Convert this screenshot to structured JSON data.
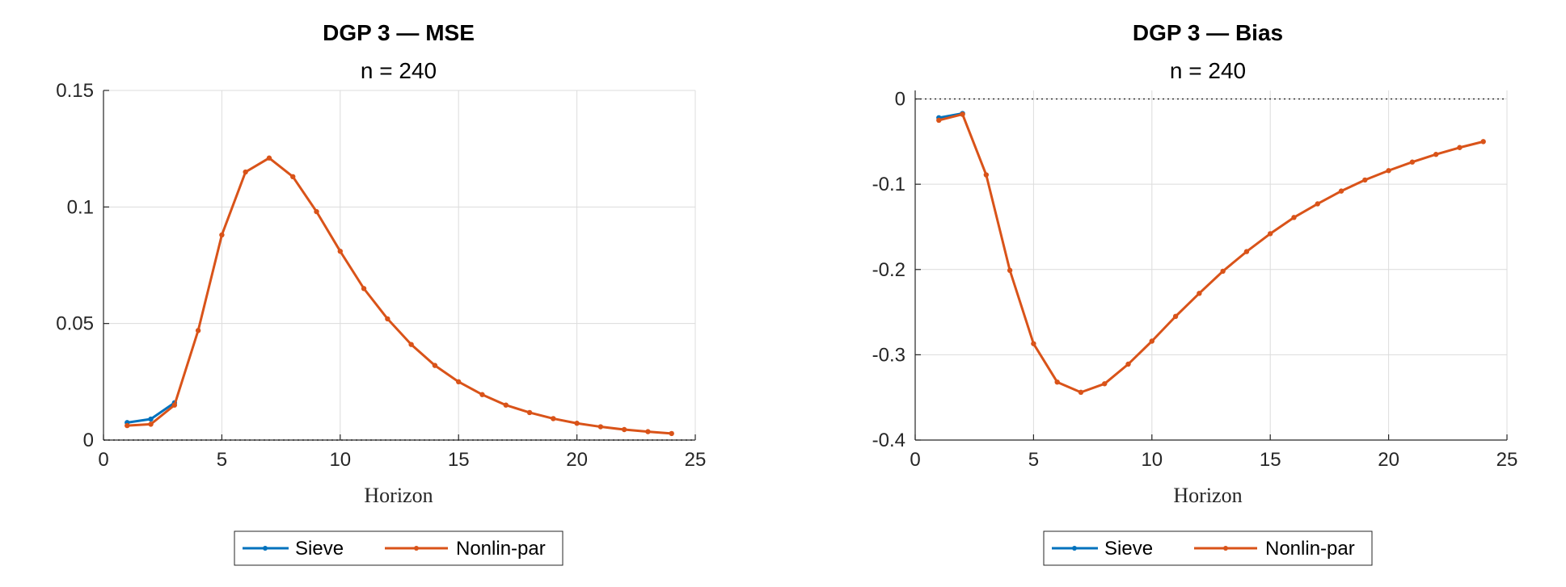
{
  "chart_data": [
    {
      "type": "line",
      "title": "DGP 3  —  MSE",
      "subtitle": "n = 240",
      "xlabel": "Horizon",
      "ylabel": "",
      "xlim": [
        0,
        25
      ],
      "ylim": [
        0,
        0.15
      ],
      "xticks": [
        0,
        5,
        10,
        15,
        20,
        25
      ],
      "xtick_labels": [
        "0",
        "5",
        "10",
        "15",
        "20",
        "25"
      ],
      "yticks": [
        0,
        0.05,
        0.1,
        0.15
      ],
      "ytick_labels": [
        "0",
        "0.05",
        "0.1",
        "0.15"
      ],
      "grid": true,
      "zero_line": true,
      "legend": "bottom",
      "series": [
        {
          "name": "Sieve",
          "color": "#0072BD",
          "x": [
            1,
            2,
            3
          ],
          "values": [
            0.0075,
            0.009,
            0.016
          ]
        },
        {
          "name": "Nonlin-par",
          "color": "#D95319",
          "x": [
            1,
            2,
            3,
            4,
            5,
            6,
            7,
            8,
            9,
            10,
            11,
            12,
            13,
            14,
            15,
            16,
            17,
            18,
            19,
            20,
            21,
            22,
            23,
            24
          ],
          "values": [
            0.0062,
            0.0068,
            0.015,
            0.047,
            0.088,
            0.115,
            0.121,
            0.113,
            0.098,
            0.081,
            0.065,
            0.052,
            0.041,
            0.032,
            0.025,
            0.0195,
            0.015,
            0.0118,
            0.0092,
            0.0072,
            0.0057,
            0.0045,
            0.0036,
            0.0028
          ]
        }
      ]
    },
    {
      "type": "line",
      "title": "DGP 3  —  Bias",
      "subtitle": "n = 240",
      "xlabel": "Horizon",
      "ylabel": "",
      "xlim": [
        0,
        25
      ],
      "ylim": [
        -0.4,
        0.01
      ],
      "xticks": [
        0,
        5,
        10,
        15,
        20,
        25
      ],
      "xtick_labels": [
        "0",
        "5",
        "10",
        "15",
        "20",
        "25"
      ],
      "yticks": [
        -0.4,
        -0.3,
        -0.2,
        -0.1,
        0
      ],
      "ytick_labels": [
        "-0.4",
        "-0.3",
        "-0.2",
        "-0.1",
        "0"
      ],
      "grid": true,
      "zero_line": true,
      "legend": "bottom",
      "series": [
        {
          "name": "Sieve",
          "color": "#0072BD",
          "x": [
            1,
            2
          ],
          "values": [
            -0.022,
            -0.017
          ]
        },
        {
          "name": "Nonlin-par",
          "color": "#D95319",
          "x": [
            1,
            2,
            3,
            4,
            5,
            6,
            7,
            8,
            9,
            10,
            11,
            12,
            13,
            14,
            15,
            16,
            17,
            18,
            19,
            20,
            21,
            22,
            23,
            24
          ],
          "values": [
            -0.025,
            -0.018,
            -0.089,
            -0.201,
            -0.287,
            -0.332,
            -0.344,
            -0.334,
            -0.311,
            -0.284,
            -0.255,
            -0.228,
            -0.202,
            -0.179,
            -0.158,
            -0.139,
            -0.123,
            -0.108,
            -0.095,
            -0.084,
            -0.074,
            -0.065,
            -0.057,
            -0.05
          ]
        }
      ]
    }
  ]
}
